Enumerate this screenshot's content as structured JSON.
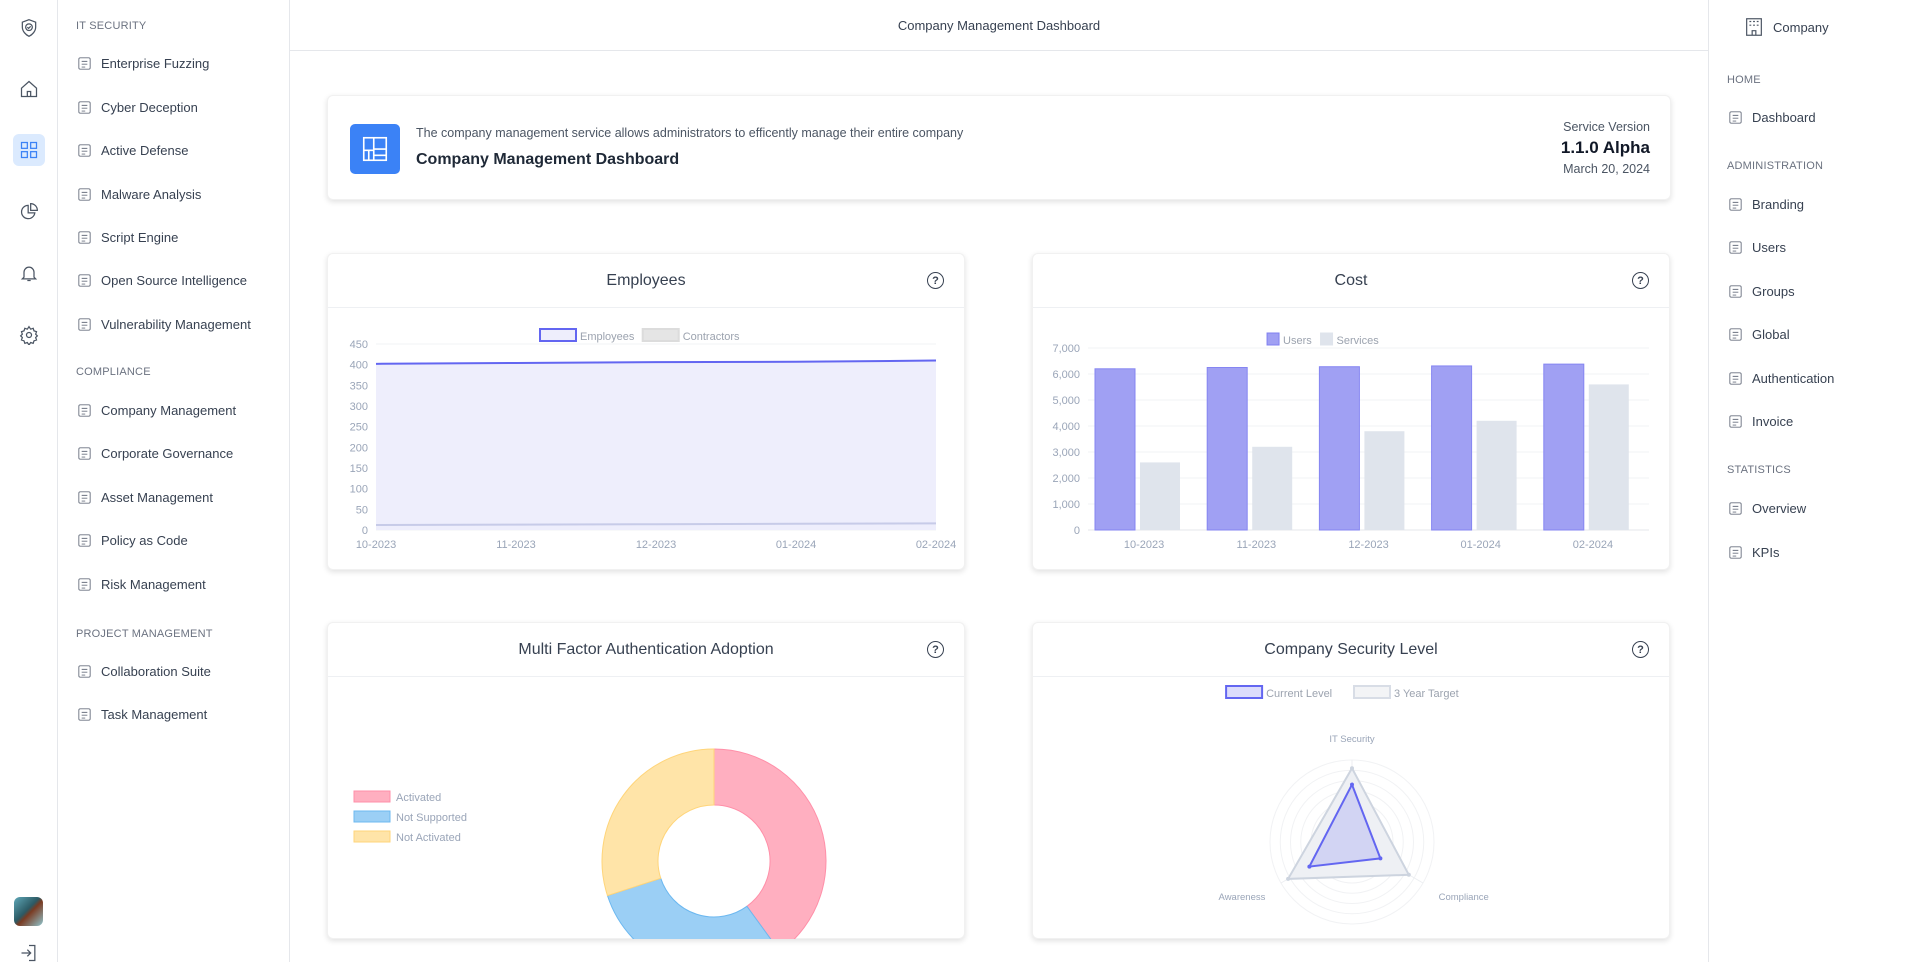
{
  "rail": {
    "icons": [
      "shield-logo-icon",
      "home-icon",
      "grid-icon",
      "pie-chart-icon",
      "bell-icon",
      "gear-icon",
      "avatar",
      "logout-icon"
    ]
  },
  "left_sidebar": {
    "sections": [
      {
        "title": "IT SECURITY",
        "items": [
          "Enterprise Fuzzing",
          "Cyber Deception",
          "Active Defense",
          "Malware Analysis",
          "Script Engine",
          "Open Source Intelligence",
          "Vulnerability Management"
        ]
      },
      {
        "title": "COMPLIANCE",
        "items": [
          "Company Management",
          "Corporate Governance",
          "Asset Management",
          "Policy as Code",
          "Risk Management"
        ]
      },
      {
        "title": "PROJECT MANAGEMENT",
        "items": [
          "Collaboration Suite",
          "Task Management"
        ]
      }
    ]
  },
  "header": {
    "title": "Company Management Dashboard"
  },
  "right_sidebar": {
    "company": "Company",
    "sections": [
      {
        "title": "HOME",
        "items": [
          "Dashboard"
        ]
      },
      {
        "title": "ADMINISTRATION",
        "items": [
          "Branding",
          "Users",
          "Groups",
          "Global",
          "Authentication",
          "Invoice"
        ]
      },
      {
        "title": "STATISTICS",
        "items": [
          "Overview",
          "KPIs"
        ]
      }
    ]
  },
  "hero": {
    "description": "The company management service allows administrators to efficently manage their entire company",
    "title": "Company Management Dashboard",
    "version_label": "Service Version",
    "version": "1.1.0 Alpha",
    "date": "March 20, 2024"
  },
  "colors": {
    "accent": "#3b82f6",
    "purple": "#6366f1",
    "purple_fill": "#a0a0f3",
    "gray_fill": "#dfe4ec",
    "pink": "#ffafc0",
    "blue": "#9bcff5",
    "yellow": "#ffe4a8"
  },
  "chart_data": [
    {
      "type": "area",
      "title": "Employees",
      "categories": [
        "10-2023",
        "11-2023",
        "12-2023",
        "01-2024",
        "02-2024"
      ],
      "ylim": [
        0,
        450
      ],
      "yticks": [
        0,
        50,
        100,
        150,
        200,
        250,
        300,
        350,
        400,
        450
      ],
      "legend": "top",
      "series": [
        {
          "name": "Employees",
          "values": [
            402,
            404,
            406,
            407,
            410
          ]
        },
        {
          "name": "Contractors",
          "values": [
            12,
            13,
            14,
            15,
            16
          ]
        }
      ]
    },
    {
      "type": "bar",
      "title": "Cost",
      "categories": [
        "10-2023",
        "11-2023",
        "12-2023",
        "01-2024",
        "02-2024"
      ],
      "ylim": [
        0,
        7000
      ],
      "yticks": [
        "0",
        "1,000",
        "2,000",
        "3,000",
        "4,000",
        "5,000",
        "6,000",
        "7,000"
      ],
      "legend": "top",
      "series": [
        {
          "name": "Users",
          "values": [
            6200,
            6250,
            6280,
            6310,
            6380
          ]
        },
        {
          "name": "Services",
          "values": [
            2600,
            3200,
            3800,
            4200,
            5600
          ]
        }
      ]
    },
    {
      "type": "pie",
      "title": "Multi Factor Authentication Adoption",
      "legend": "left",
      "labels": [
        "Activated",
        "Not Supported",
        "Not Activated"
      ],
      "values": [
        40,
        30,
        30
      ]
    },
    {
      "type": "radar",
      "title": "Company Security Level",
      "legend": "top",
      "axes": [
        "IT Security",
        "Compliance",
        "Awareness"
      ],
      "rmax": 10,
      "series": [
        {
          "name": "Current Level",
          "values": [
            7,
            4,
            6
          ]
        },
        {
          "name": "3 Year Target",
          "values": [
            9,
            8,
            9
          ]
        }
      ]
    }
  ]
}
